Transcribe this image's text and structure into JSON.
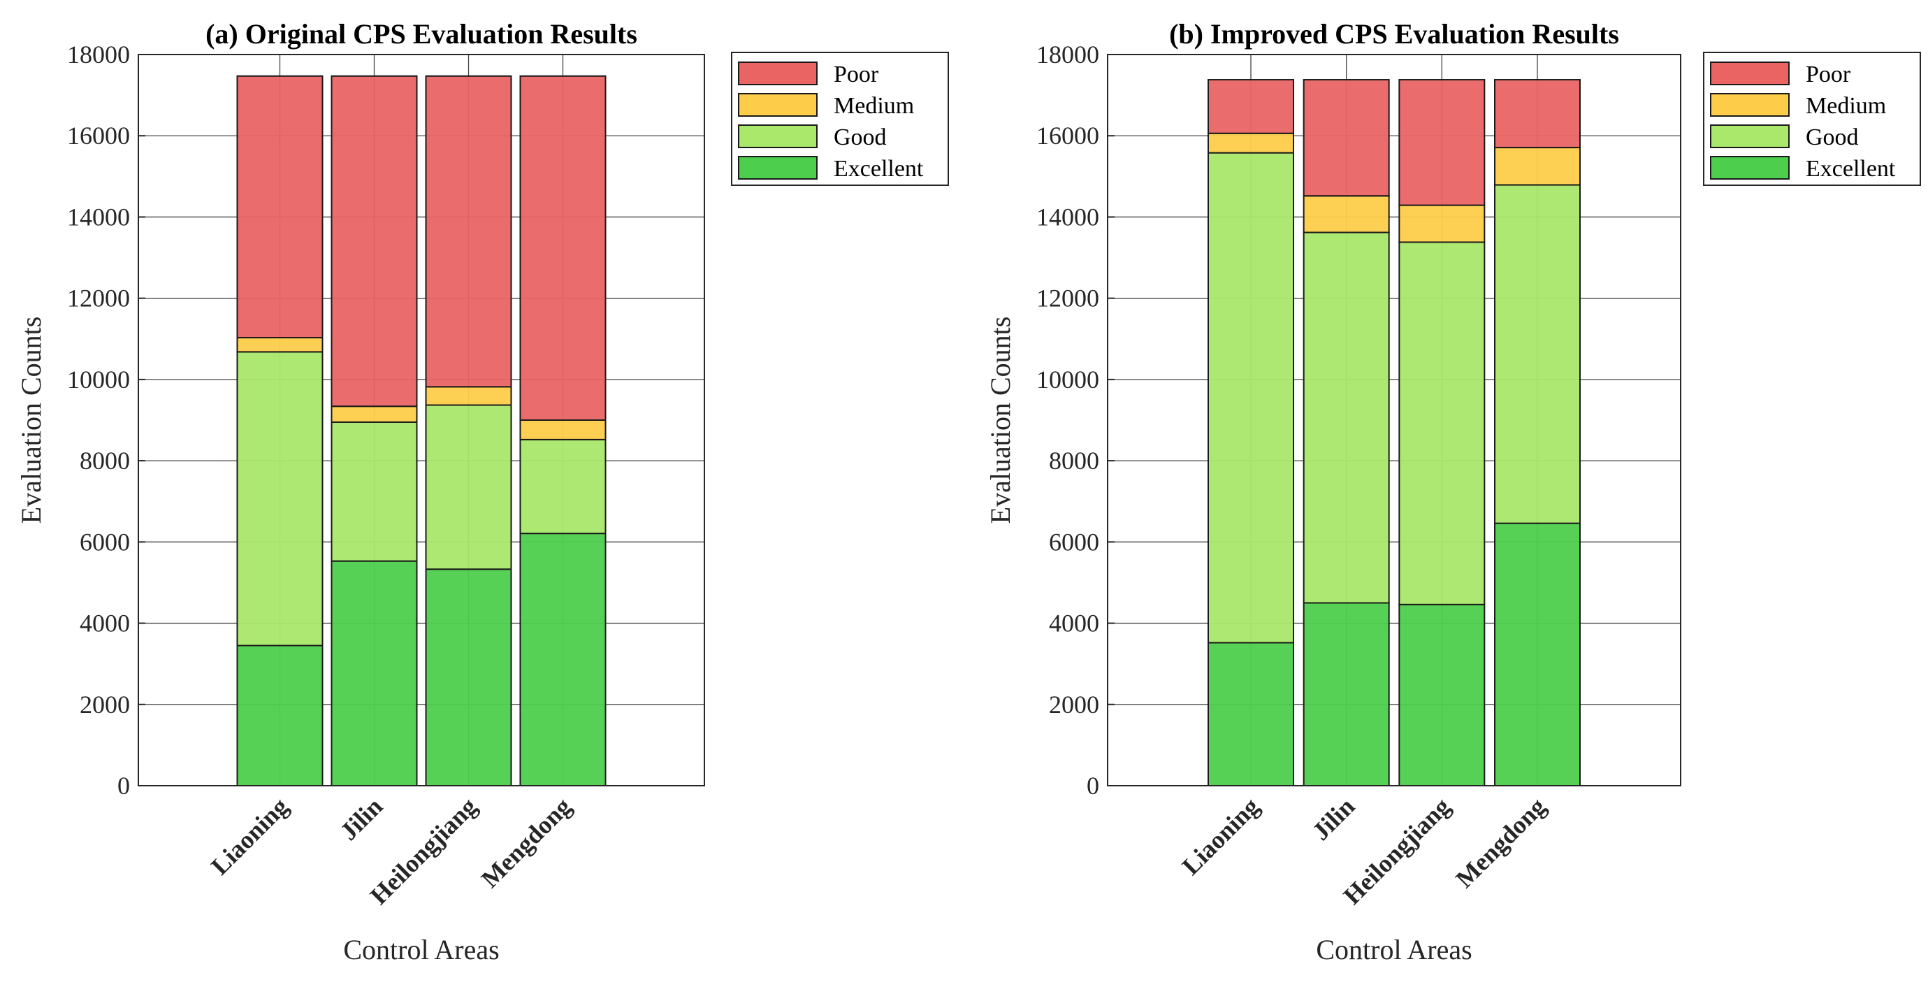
{
  "colors": {
    "Excellent": "#4dcf4d",
    "Good": "#a9e86a",
    "Medium": "#fdcd4a",
    "Poor": "#ea6464"
  },
  "chart_data": [
    {
      "type": "bar",
      "stacked": true,
      "title": "(a) Original CPS Evaluation Results",
      "xlabel": "Control Areas",
      "ylabel": "Evaluation Counts",
      "ylim": [
        0,
        18000
      ],
      "yticks": [
        "0",
        "2000",
        "4000",
        "6000",
        "8000",
        "10000",
        "12000",
        "14000",
        "16000",
        "18000"
      ],
      "grid": true,
      "legend_position": "outside-top-right",
      "categories": [
        "Liaoning",
        "Jilin",
        "Heilongjiang",
        "Mengdong"
      ],
      "series": [
        {
          "name": "Excellent",
          "values": [
            3450,
            5530,
            5330,
            6210
          ]
        },
        {
          "name": "Good",
          "values": [
            7230,
            3420,
            4040,
            2310
          ]
        },
        {
          "name": "Medium",
          "values": [
            350,
            390,
            450,
            480
          ]
        },
        {
          "name": "Poor",
          "values": [
            6440,
            8130,
            7650,
            8470
          ]
        }
      ],
      "legend": [
        "Poor",
        "Medium",
        "Good",
        "Excellent"
      ]
    },
    {
      "type": "bar",
      "stacked": true,
      "title": "(b) Improved CPS Evaluation Results",
      "xlabel": "Control Areas",
      "ylabel": "Evaluation Counts",
      "ylim": [
        0,
        18000
      ],
      "yticks": [
        "0",
        "2000",
        "4000",
        "6000",
        "8000",
        "10000",
        "12000",
        "14000",
        "16000",
        "18000"
      ],
      "grid": true,
      "legend_position": "outside-top-right",
      "categories": [
        "Liaoning",
        "Jilin",
        "Heilongjiang",
        "Mengdong"
      ],
      "series": [
        {
          "name": "Excellent",
          "values": [
            3520,
            4500,
            4460,
            6460
          ]
        },
        {
          "name": "Good",
          "values": [
            12060,
            9120,
            8920,
            8330
          ]
        },
        {
          "name": "Medium",
          "values": [
            480,
            900,
            910,
            920
          ]
        },
        {
          "name": "Poor",
          "values": [
            1320,
            2860,
            3090,
            1670
          ]
        }
      ],
      "legend": [
        "Poor",
        "Medium",
        "Good",
        "Excellent"
      ]
    }
  ]
}
